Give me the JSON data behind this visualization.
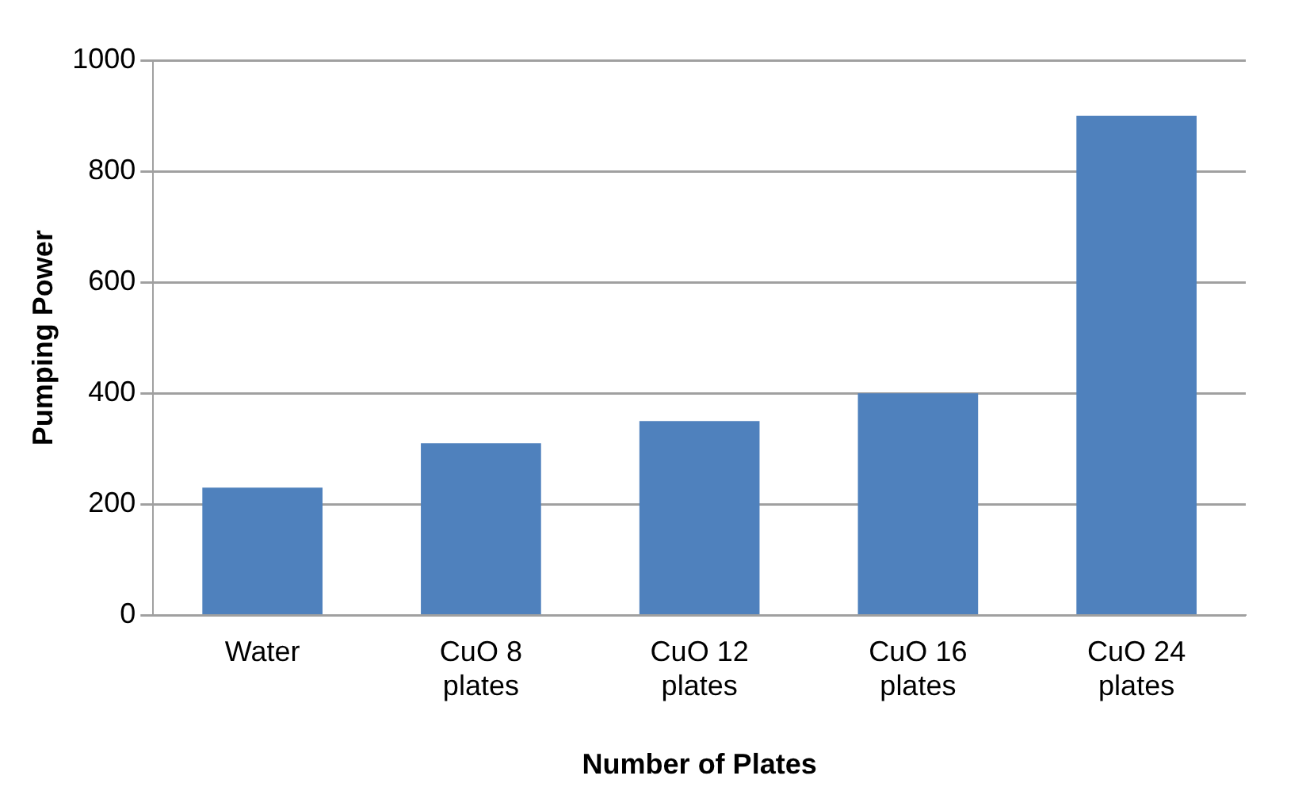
{
  "chart_data": {
    "type": "bar",
    "xlabel": "Number of Plates",
    "ylabel": "Pumping Power",
    "categories": [
      "Water",
      "CuO 8 plates",
      "CuO 12 plates",
      "CuO 16 plates",
      "CuO 24 plates"
    ],
    "values": [
      230,
      310,
      350,
      400,
      900
    ],
    "color": "#4f81bd",
    "ylim": [
      0,
      1000
    ],
    "yticks": [
      0,
      200,
      400,
      600,
      800,
      1000
    ],
    "grid": "y",
    "legend": false
  }
}
